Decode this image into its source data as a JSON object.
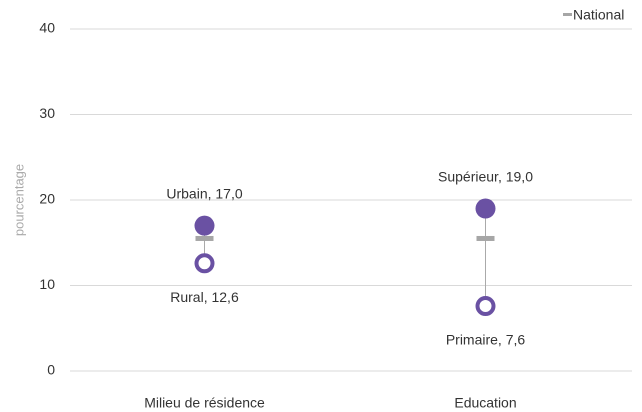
{
  "chart_data": {
    "type": "dot",
    "y_label": "pourcentage",
    "categories": [
      "Milieu de résidence",
      "Education"
    ],
    "series": [
      {
        "color": "#6a51a3",
        "marker": "filled",
        "values": [
          17.0,
          19.0
        ],
        "value_labels": [
          "Urbain, 17,0",
          "Supérieur, 19,0"
        ],
        "label_position": "above"
      },
      {
        "color": "#6a51a3",
        "marker": "ring",
        "values": [
          12.6,
          7.6
        ],
        "value_labels": [
          "Rural, 12,6",
          "Primaire, 7,6"
        ],
        "label_position": "below"
      },
      {
        "name": "National",
        "color": "#a6a6a6",
        "marker": "dash",
        "values": [
          15.5,
          15.5
        ]
      }
    ],
    "ylim": [
      0,
      40
    ],
    "yticks": [
      0,
      10,
      20,
      30,
      40
    ],
    "grid": true,
    "legend": "top-right"
  }
}
